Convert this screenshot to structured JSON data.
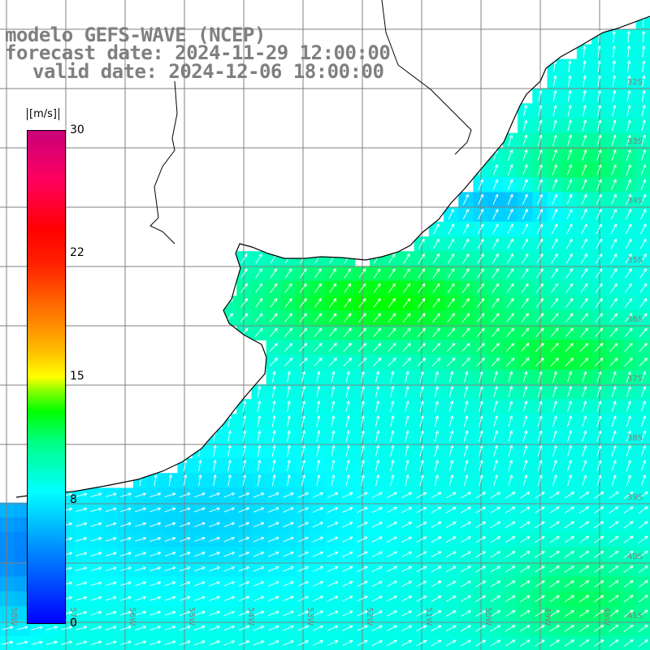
{
  "title": {
    "line1": "modelo GEFS-WAVE (NCEP)",
    "line2": "forecast date: 2024-11-29 12:00:00",
    "line3": "valid date: 2024-12-06 18:00:00"
  },
  "colorbar": {
    "unit": "[m/s]",
    "ticks": [
      "30",
      "22",
      "15",
      "8",
      "0"
    ],
    "colors": [
      "#0000ff",
      "#00ffff",
      "#00ff00",
      "#ffff00",
      "#ff0000",
      "#c8007a"
    ]
  },
  "latitude_labels": [
    "32S",
    "33S",
    "34S",
    "35S",
    "36S",
    "37S",
    "38S",
    "39S",
    "40S",
    "41S"
  ],
  "longitude_labels": [
    "58W",
    "57W",
    "56W",
    "55W",
    "54W",
    "53W",
    "52W",
    "51W",
    "50W",
    "49W",
    "48W"
  ],
  "colors": {
    "land": "#ffffff",
    "grid": "#808080",
    "coastline": "#000000",
    "arrows": "#ffffff",
    "title_text": "#7f7f7f"
  },
  "legend_placement": "left"
}
